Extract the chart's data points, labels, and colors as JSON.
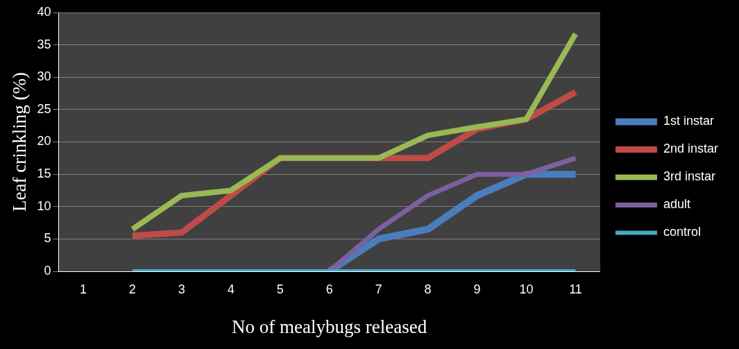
{
  "chart_data": {
    "type": "line",
    "xlabel": "No of mealybugs released",
    "ylabel": "Leaf crinkling (%)",
    "categories": [
      "1",
      "2",
      "3",
      "4",
      "5",
      "6",
      "7",
      "8",
      "9",
      "10",
      "11"
    ],
    "series": [
      {
        "name": "1st instar",
        "color": "#4a7ebb",
        "values": [
          null,
          null,
          null,
          null,
          null,
          0,
          5,
          6.5,
          11.7,
          15,
          15
        ]
      },
      {
        "name": "2nd instar",
        "color": "#be4b48",
        "values": [
          null,
          5.5,
          6,
          11.7,
          17.5,
          17.5,
          17.5,
          17.5,
          22,
          23.5,
          27.7
        ]
      },
      {
        "name": "3rd instar",
        "color": "#98b954",
        "values": [
          null,
          6.5,
          11.7,
          12.5,
          17.5,
          17.5,
          17.5,
          21,
          22.3,
          23.5,
          36.7
        ]
      },
      {
        "name": "adult",
        "color": "#7d60a0",
        "values": [
          null,
          null,
          null,
          null,
          null,
          0,
          6.5,
          11.7,
          15,
          15,
          17.5
        ]
      },
      {
        "name": "control",
        "color": "#46aac5",
        "values": [
          null,
          0,
          0,
          0,
          0,
          0,
          0,
          0,
          0,
          0,
          0
        ]
      }
    ],
    "ylim": [
      0,
      40
    ],
    "yticks": [
      0,
      5,
      10,
      15,
      20,
      25,
      30,
      35,
      40
    ],
    "grid": "y",
    "legend": "right",
    "marker": "none",
    "line_style": "solid"
  }
}
